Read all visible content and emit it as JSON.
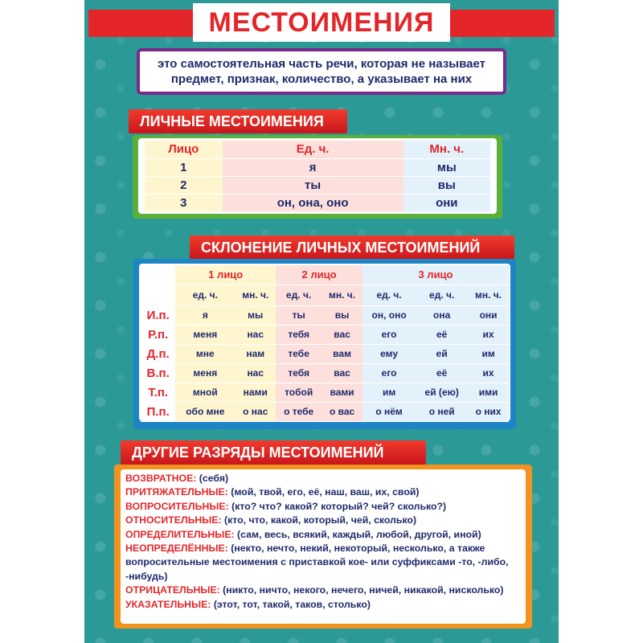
{
  "title": "МЕСТОИМЕНИЯ",
  "definition": "это самостоятельная часть речи, которая не называет предмет, признак, количество, а указывает на них",
  "personal": {
    "heading": "ЛИЧНЫЕ МЕСТОИМЕНИЯ",
    "headers": [
      "Лицо",
      "Ед. ч.",
      "Мн. ч."
    ],
    "rows": [
      [
        "1",
        "я",
        "мы"
      ],
      [
        "2",
        "ты",
        "вы"
      ],
      [
        "3",
        "он, она, оно",
        "они"
      ]
    ]
  },
  "declension": {
    "heading": "СКЛОНЕНИЕ ЛИЧНЫХ МЕСТОИМЕНИЙ",
    "persons": [
      "1 лицо",
      "2 лицо",
      "3 лицо"
    ],
    "numbers": [
      "ед. ч.",
      "мн. ч.",
      "ед. ч.",
      "мн. ч.",
      "ед. ч.",
      "ед. ч.",
      "мн. ч."
    ],
    "rows": [
      [
        "И.п.",
        "я",
        "мы",
        "ты",
        "вы",
        "он, оно",
        "она",
        "они"
      ],
      [
        "Р.п.",
        "меня",
        "нас",
        "тебя",
        "вас",
        "его",
        "её",
        "их"
      ],
      [
        "Д.п.",
        "мне",
        "нам",
        "тебе",
        "вам",
        "ему",
        "ей",
        "им"
      ],
      [
        "В.п.",
        "меня",
        "нас",
        "тебя",
        "вас",
        "его",
        "её",
        "их"
      ],
      [
        "Т.п.",
        "мной",
        "нами",
        "тобой",
        "вами",
        "им",
        "ей (ею)",
        "ими"
      ],
      [
        "П.п.",
        "обо мне",
        "о нас",
        "о тебе",
        "о вас",
        "о нём",
        "о ней",
        "о них"
      ]
    ]
  },
  "other": {
    "heading": "ДРУГИЕ РАЗРЯДЫ МЕСТОИМЕНИЙ",
    "items": [
      {
        "k": "ВОЗВРАТНОЕ:",
        "v": " (себя)"
      },
      {
        "k": "ПРИТЯЖАТЕЛЬНЫЕ:",
        "v": " (мой, твой, его, её, наш, ваш, их, свой)"
      },
      {
        "k": "ВОПРОСИТЕЛЬНЫЕ:",
        "v": " (кто? что? какой? который? чей? сколько?)"
      },
      {
        "k": "ОТНОСИТЕЛЬНЫЕ:",
        "v": " (кто, что, какой, который, чей, сколько)"
      },
      {
        "k": "ОПРЕДЕЛИТЕЛЬНЫЕ:",
        "v": " (сам, весь, всякий, каждый, любой, другой, иной)"
      },
      {
        "k": "НЕОПРЕДЕЛЁННЫЕ:",
        "v": " (некто, нечто, некий, некоторый, несколько, а также вопросительные местоимения с приставкой кое- или суффиксами -то, -либо, -нибудь)"
      },
      {
        "k": "ОТРИЦАТЕЛЬНЫЕ:",
        "v": " (никто, ничто, некого, нечего, ничей, никакой, нисколько)"
      },
      {
        "k": "УКАЗАТЕЛЬНЫЕ:",
        "v": " (этот, тот, такой, таков, столько)"
      }
    ]
  }
}
